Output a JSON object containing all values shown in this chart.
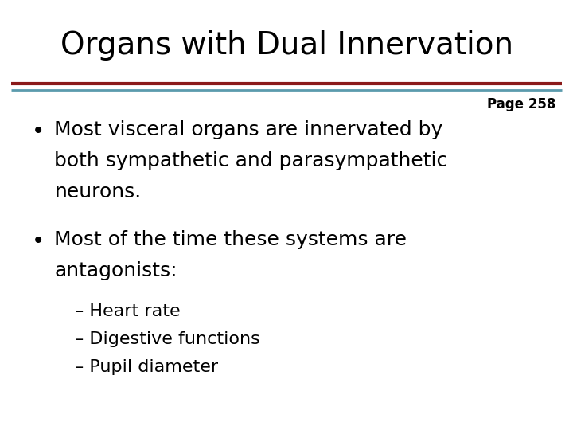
{
  "title": "Organs with Dual Innervation",
  "title_fontsize": 28,
  "title_color": "#000000",
  "background_color": "#ffffff",
  "line1_color": "#8B1A1A",
  "line2_color": "#5B9BAD",
  "page_ref": "Page 258",
  "page_ref_fontsize": 12,
  "bullet1_line1": "Most visceral organs are innervated by",
  "bullet1_line2": "both sympathetic and parasympathetic",
  "bullet1_line3": "neurons.",
  "bullet2_line1": "Most of the time these systems are",
  "bullet2_line2": "antagonists:",
  "sub1": "– Heart rate",
  "sub2": "– Digestive functions",
  "sub3": "– Pupil diameter",
  "bullet_fontsize": 18,
  "sub_fontsize": 16,
  "bullet_color": "#000000",
  "font_family": "DejaVu Sans"
}
